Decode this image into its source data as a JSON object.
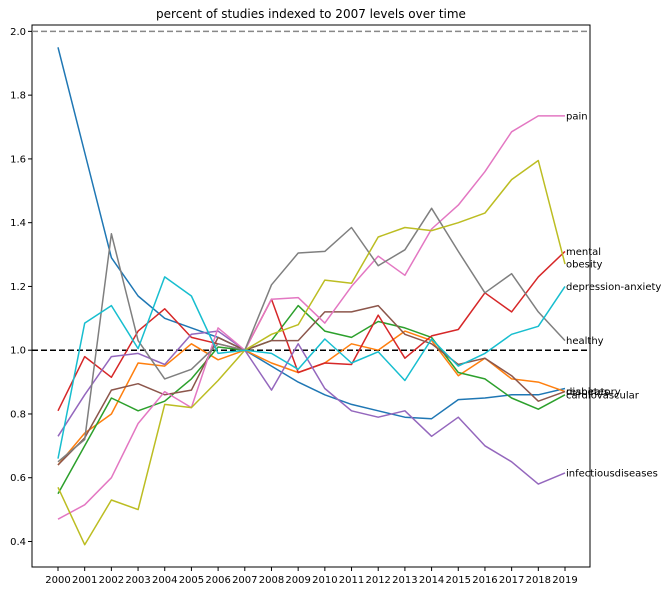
{
  "chart_data": {
    "type": "line",
    "title": "percent of studies indexed to 2007 levels over time",
    "xlabel": "",
    "ylabel": "",
    "x": [
      2000,
      2001,
      2002,
      2003,
      2004,
      2005,
      2006,
      2007,
      2008,
      2009,
      2010,
      2011,
      2012,
      2013,
      2014,
      2015,
      2016,
      2017,
      2018,
      2019
    ],
    "x_tick_labels": [
      "2000",
      "2001",
      "2002",
      "2003",
      "2004",
      "2005",
      "2006",
      "2007",
      "2008",
      "2009",
      "2010",
      "2011",
      "2012",
      "2013",
      "2014",
      "2015",
      "2016",
      "2017",
      "2018",
      "2019"
    ],
    "ylim": [
      0.32,
      2.02
    ],
    "y_ticks": [
      0.4,
      0.6,
      0.8,
      1.0,
      1.2,
      1.4,
      1.6,
      1.8,
      2.0
    ],
    "y_tick_labels": [
      "0.4",
      "0.6",
      "0.8",
      "1.0",
      "1.2",
      "1.4",
      "1.6",
      "1.8",
      "2.0"
    ],
    "reference_lines": [
      {
        "y": 2.0,
        "style": "dashed",
        "color": "#888888"
      },
      {
        "y": 1.0,
        "style": "dashed",
        "color": "#000000"
      }
    ],
    "grid": false,
    "series": [
      {
        "name": "blue",
        "color": "#1f77b4",
        "label": "",
        "values": [
          1.95,
          1.62,
          1.29,
          1.17,
          1.1,
          1.07,
          1.04,
          1.0,
          0.95,
          0.9,
          0.86,
          0.83,
          0.81,
          0.79,
          0.785,
          0.845,
          0.85,
          0.86,
          0.86,
          0.88
        ]
      },
      {
        "name": "respiratory",
        "color": "#ff7f0e",
        "label": "respiratory",
        "values": [
          0.64,
          0.74,
          0.8,
          0.96,
          0.95,
          1.02,
          0.97,
          1.0,
          0.96,
          0.93,
          0.96,
          1.02,
          1.0,
          1.06,
          1.03,
          0.92,
          0.975,
          0.91,
          0.9,
          0.87
        ]
      },
      {
        "name": "cardiovascular",
        "color": "#2ca02c",
        "label": "cardiovascular",
        "values": [
          0.55,
          0.7,
          0.85,
          0.81,
          0.84,
          0.91,
          1.01,
          1.0,
          1.03,
          1.14,
          1.06,
          1.04,
          1.09,
          1.07,
          1.04,
          0.93,
          0.91,
          0.85,
          0.815,
          0.86
        ]
      },
      {
        "name": "mental",
        "color": "#d62728",
        "label": "mental",
        "values": [
          0.81,
          0.98,
          0.915,
          1.06,
          1.13,
          1.04,
          1.02,
          1.0,
          1.16,
          0.93,
          0.96,
          0.955,
          1.11,
          0.975,
          1.045,
          1.065,
          1.18,
          1.12,
          1.23,
          1.31
        ]
      },
      {
        "name": "infectiousdiseases",
        "color": "#9467bd",
        "label": "infectiousdiseases",
        "values": [
          0.73,
          0.86,
          0.98,
          0.99,
          0.955,
          1.05,
          1.06,
          1.0,
          0.875,
          1.02,
          0.88,
          0.81,
          0.79,
          0.81,
          0.73,
          0.79,
          0.7,
          0.65,
          0.58,
          0.615
        ]
      },
      {
        "name": "diabetes",
        "color": "#8c564b",
        "label": "diabetes",
        "values": [
          0.64,
          0.725,
          0.875,
          0.895,
          0.86,
          0.875,
          1.04,
          1.0,
          1.03,
          1.03,
          1.12,
          1.12,
          1.14,
          1.05,
          1.02,
          0.955,
          0.975,
          0.92,
          0.84,
          0.87
        ]
      },
      {
        "name": "pain",
        "color": "#e377c2",
        "label": "pain",
        "values": [
          0.47,
          0.515,
          0.6,
          0.77,
          0.87,
          0.82,
          1.07,
          1.0,
          1.16,
          1.165,
          1.085,
          1.2,
          1.295,
          1.235,
          1.38,
          1.455,
          1.56,
          1.685,
          1.735,
          1.735
        ]
      },
      {
        "name": "healthy",
        "color": "#7f7f7f",
        "label": "healthy",
        "values": [
          0.65,
          0.72,
          1.365,
          1.03,
          0.91,
          0.94,
          1.02,
          1.0,
          1.205,
          1.305,
          1.31,
          1.385,
          1.265,
          1.315,
          1.445,
          1.31,
          1.18,
          1.24,
          1.12,
          1.03
        ]
      },
      {
        "name": "obesity",
        "color": "#bcbd22",
        "label": "obesity",
        "values": [
          0.57,
          0.39,
          0.53,
          0.5,
          0.83,
          0.82,
          0.905,
          1.0,
          1.05,
          1.08,
          1.22,
          1.21,
          1.355,
          1.385,
          1.375,
          1.4,
          1.43,
          1.535,
          1.595,
          1.27
        ]
      },
      {
        "name": "depression-anxiety",
        "color": "#17becf",
        "label": "depression-anxiety",
        "values": [
          0.66,
          1.085,
          1.14,
          1.005,
          1.23,
          1.17,
          0.99,
          1.0,
          0.99,
          0.94,
          1.035,
          0.96,
          0.995,
          0.905,
          1.035,
          0.95,
          0.99,
          1.05,
          1.075,
          1.2
        ]
      }
    ]
  }
}
